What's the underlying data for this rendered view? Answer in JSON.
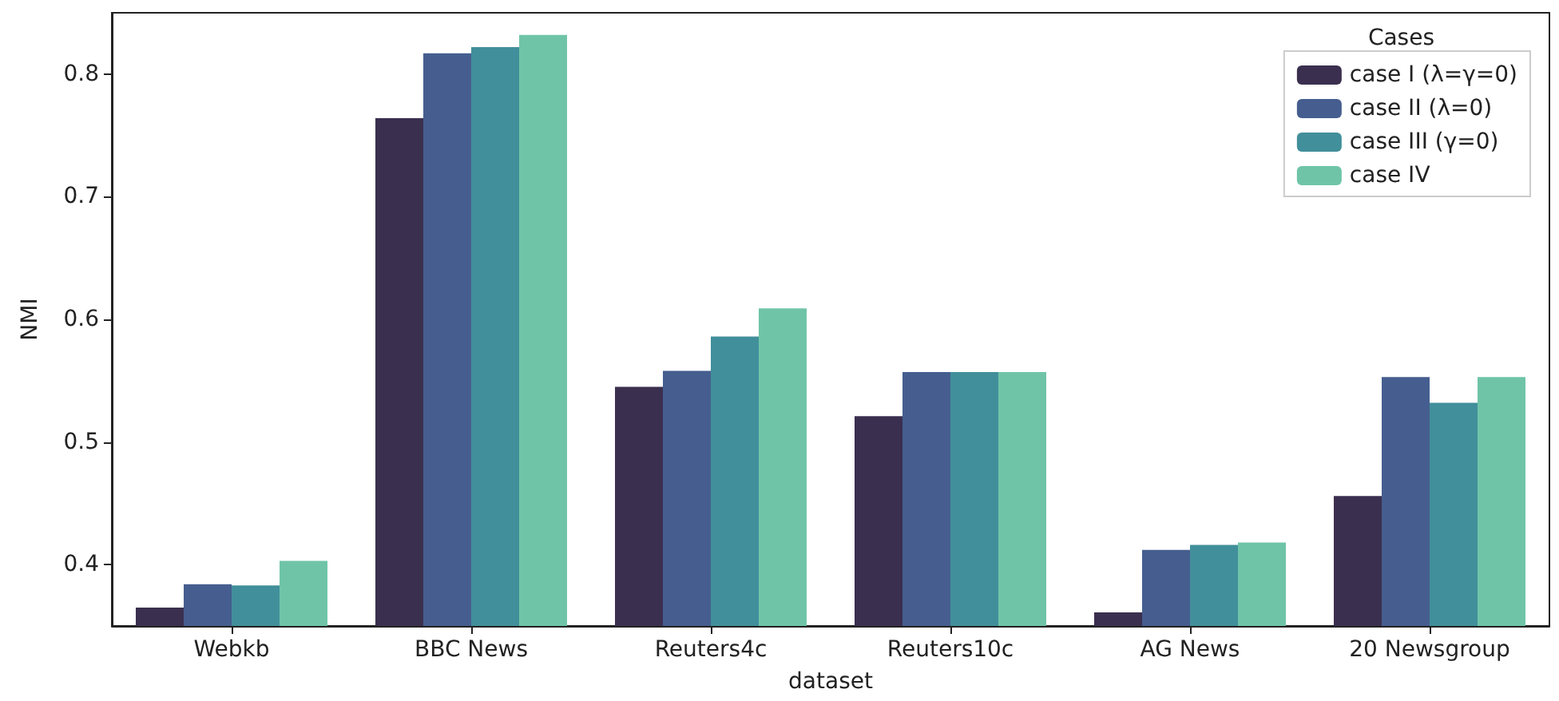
{
  "chart_data": {
    "type": "bar",
    "xlabel": "dataset",
    "ylabel": "NMI",
    "legend_title": "Cases",
    "legend": "top right",
    "grid": false,
    "categories": [
      "Webkb",
      "BBC News",
      "Reuters4c",
      "Reuters10c",
      "AG News",
      "20 Newsgroup"
    ],
    "ylim": [
      0.35,
      0.85
    ],
    "yticks": [
      0.4,
      0.5,
      0.6,
      0.7,
      0.8
    ],
    "series": [
      {
        "name": "case I (λ=γ=0)",
        "color": "#3b2f4f",
        "values": [
          0.365,
          0.764,
          0.545,
          0.521,
          0.361,
          0.456
        ]
      },
      {
        "name": "case II (λ=0)",
        "color": "#455e8f",
        "values": [
          0.384,
          0.817,
          0.558,
          0.557,
          0.412,
          0.553
        ]
      },
      {
        "name": "case III (γ=0)",
        "color": "#418f9b",
        "values": [
          0.383,
          0.822,
          0.586,
          0.557,
          0.416,
          0.532
        ]
      },
      {
        "name": "case IV",
        "color": "#6fc4a8",
        "values": [
          0.403,
          0.832,
          0.609,
          0.557,
          0.418,
          0.553
        ]
      }
    ]
  }
}
